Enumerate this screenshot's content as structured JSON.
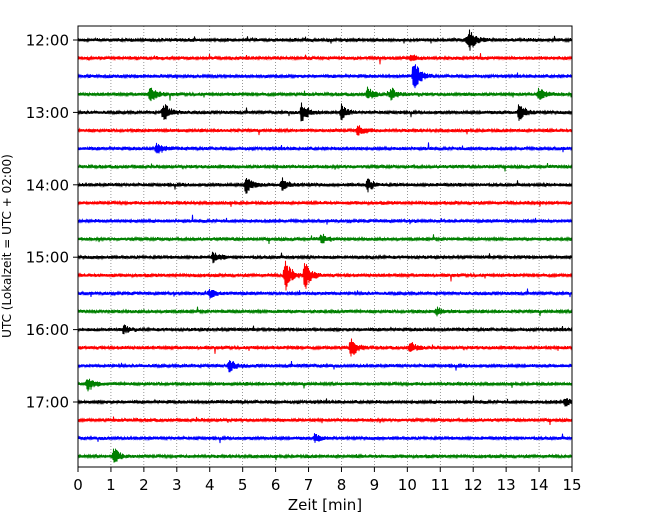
{
  "chart_data": {
    "type": "line",
    "title": "",
    "xlabel": "Zeit  [min]",
    "ylabel": "UTC (Lokalzeit = UTC + 02:00)",
    "xlim": [
      0,
      15
    ],
    "x_ticks": [
      0,
      1,
      2,
      3,
      4,
      5,
      6,
      7,
      8,
      9,
      10,
      11,
      12,
      13,
      14,
      15
    ],
    "y_tick_labels": [
      "12:00",
      "13:00",
      "14:00",
      "15:00",
      "16:00",
      "17:00"
    ],
    "y_tick_rows": [
      0,
      4,
      8,
      12,
      16,
      20
    ],
    "grid_x": true,
    "line_colors": [
      "#000000",
      "#ff0000",
      "#0000ff",
      "#008000"
    ],
    "rows": [
      {
        "start": "12:00",
        "color": "#000000",
        "events": [
          {
            "t": 11.9,
            "a": 0.35
          },
          {
            "t": 11.8,
            "a": 0.25
          }
        ]
      },
      {
        "start": "12:15",
        "color": "#ff0000",
        "events": [
          {
            "t": 10.1,
            "a": 0.15
          }
        ]
      },
      {
        "start": "12:30",
        "color": "#0000ff",
        "events": [
          {
            "t": 10.2,
            "a": 0.8
          }
        ]
      },
      {
        "start": "12:45",
        "color": "#008000",
        "events": [
          {
            "t": 2.2,
            "a": 0.4
          },
          {
            "t": 8.8,
            "a": 0.3
          },
          {
            "t": 9.5,
            "a": 0.3
          },
          {
            "t": 14.0,
            "a": 0.3
          }
        ]
      },
      {
        "start": "13:00",
        "color": "#000000",
        "events": [
          {
            "t": 2.6,
            "a": 0.5
          },
          {
            "t": 6.8,
            "a": 0.55
          },
          {
            "t": 8.0,
            "a": 0.35
          },
          {
            "t": 13.4,
            "a": 0.45
          }
        ]
      },
      {
        "start": "13:15",
        "color": "#ff0000",
        "events": [
          {
            "t": 8.5,
            "a": 0.3
          }
        ]
      },
      {
        "start": "13:30",
        "color": "#0000ff",
        "events": [
          {
            "t": 2.4,
            "a": 0.3
          }
        ]
      },
      {
        "start": "13:45",
        "color": "#008000",
        "events": []
      },
      {
        "start": "14:00",
        "color": "#000000",
        "events": [
          {
            "t": 5.1,
            "a": 0.4
          },
          {
            "t": 6.2,
            "a": 0.3
          },
          {
            "t": 8.8,
            "a": 0.3
          }
        ]
      },
      {
        "start": "14:15",
        "color": "#ff0000",
        "events": []
      },
      {
        "start": "14:30",
        "color": "#0000ff",
        "events": []
      },
      {
        "start": "14:45",
        "color": "#008000",
        "events": [
          {
            "t": 7.4,
            "a": 0.25
          }
        ]
      },
      {
        "start": "15:00",
        "color": "#000000",
        "events": [
          {
            "t": 4.1,
            "a": 0.25
          }
        ]
      },
      {
        "start": "15:15",
        "color": "#ff0000",
        "events": [
          {
            "t": 6.3,
            "a": 0.8
          },
          {
            "t": 6.9,
            "a": 0.65
          }
        ]
      },
      {
        "start": "15:30",
        "color": "#0000ff",
        "events": [
          {
            "t": 4.0,
            "a": 0.2
          }
        ]
      },
      {
        "start": "15:45",
        "color": "#008000",
        "events": [
          {
            "t": 10.9,
            "a": 0.2
          }
        ]
      },
      {
        "start": "16:00",
        "color": "#000000",
        "events": [
          {
            "t": 1.4,
            "a": 0.2
          }
        ]
      },
      {
        "start": "16:15",
        "color": "#ff0000",
        "events": [
          {
            "t": 8.3,
            "a": 0.45
          },
          {
            "t": 10.1,
            "a": 0.25
          }
        ]
      },
      {
        "start": "16:30",
        "color": "#0000ff",
        "events": [
          {
            "t": 4.6,
            "a": 0.3
          }
        ]
      },
      {
        "start": "16:45",
        "color": "#008000",
        "events": [
          {
            "t": 0.3,
            "a": 0.35
          }
        ]
      },
      {
        "start": "17:00",
        "color": "#000000",
        "events": [
          {
            "t": 14.8,
            "a": 0.2
          }
        ]
      },
      {
        "start": "17:15",
        "color": "#ff0000",
        "events": []
      },
      {
        "start": "17:30",
        "color": "#0000ff",
        "events": [
          {
            "t": 7.2,
            "a": 0.2
          }
        ]
      },
      {
        "start": "17:45",
        "color": "#008000",
        "events": [
          {
            "t": 1.1,
            "a": 0.4
          }
        ]
      }
    ]
  }
}
